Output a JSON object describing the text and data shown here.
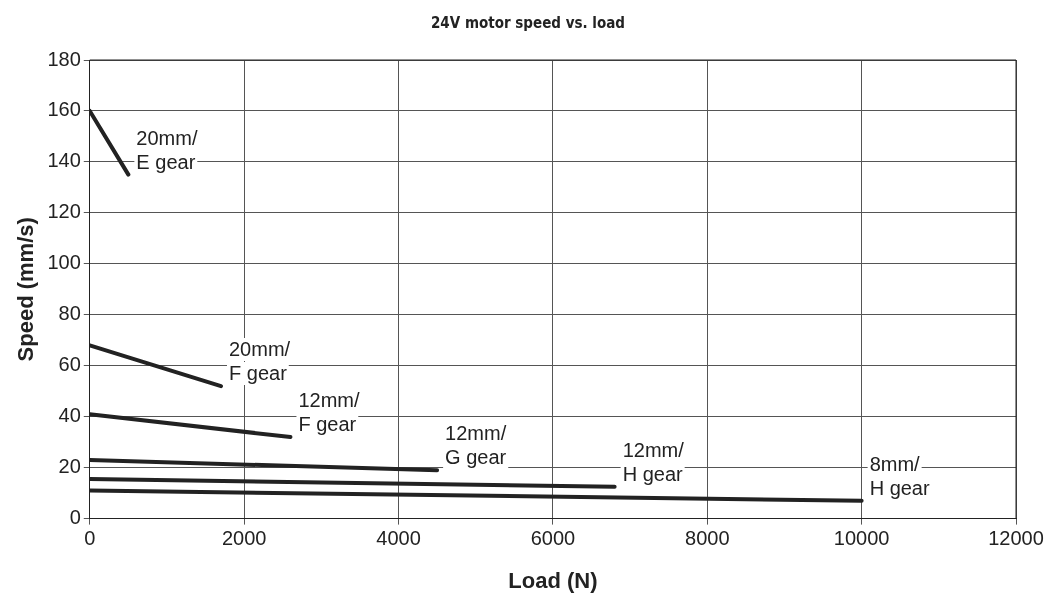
{
  "chart_data": {
    "type": "line",
    "title": "24V motor speed vs. load",
    "xlabel": "Load (N)",
    "ylabel": "Speed (mm/s)",
    "xlim": [
      0,
      12000
    ],
    "xticks": [
      0,
      2000,
      4000,
      6000,
      8000,
      10000,
      12000
    ],
    "ylim": [
      0,
      180
    ],
    "yticks": [
      0,
      20,
      40,
      60,
      80,
      100,
      120,
      140,
      160,
      180
    ],
    "grid": true,
    "legend": false,
    "marker": "none",
    "line_style": "solid",
    "series": [
      {
        "name": "20mm/\nE gear",
        "color": "#222222",
        "x": [
          0,
          500
        ],
        "values": [
          160,
          135
        ]
      },
      {
        "name": "20mm/\nF gear",
        "color": "#222222",
        "x": [
          0,
          1700
        ],
        "values": [
          68,
          52
        ]
      },
      {
        "name": "12mm/\nF gear",
        "color": "#222222",
        "x": [
          0,
          2600
        ],
        "values": [
          41,
          32
        ]
      },
      {
        "name": "12mm/\nG gear",
        "color": "#222222",
        "x": [
          0,
          4500
        ],
        "values": [
          23,
          19
        ]
      },
      {
        "name": "12mm/\nH gear",
        "color": "#222222",
        "x": [
          0,
          6800
        ],
        "values": [
          15.5,
          12.5
        ]
      },
      {
        "name": "8mm/\nH gear",
        "color": "#222222",
        "x": [
          0,
          10000
        ],
        "values": [
          11,
          7
        ]
      }
    ]
  }
}
